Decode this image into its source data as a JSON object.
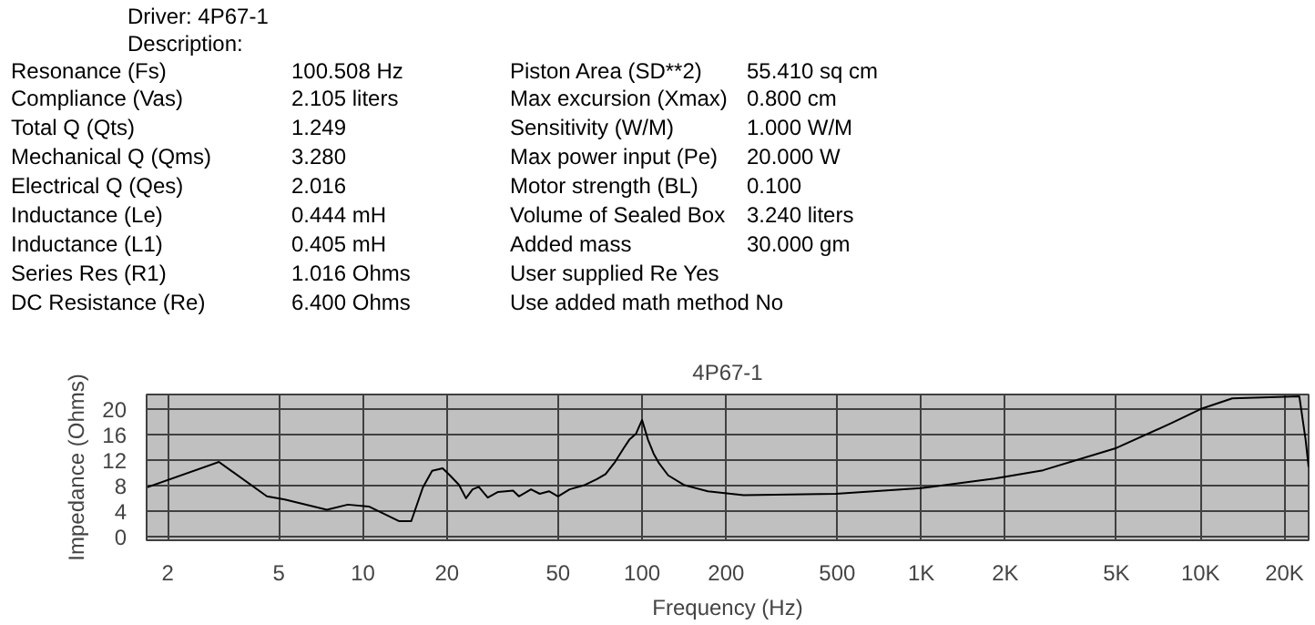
{
  "chart_data": {
    "type": "line",
    "title": "4P67-1",
    "xlabel": "Frequency (Hz)",
    "ylabel": "Impedance (Ohms)",
    "log": "x",
    "annotations": [
      "Driver:  4P67-1",
      "Description:",
      "Resonance (Fs)",
      "100.508 Hz",
      "Piston Area (SD**2)",
      "55.410  sq cm",
      "Compliance (Vas)",
      "2.105  liters",
      "Max excursion (Xmax)",
      "0.800  cm",
      "Total Q (Qts)",
      "1.249",
      "Sensitivity (W/M)",
      "1.000  W/M",
      "Mechanical Q (Qms)",
      "3.280",
      "Max power input (Pe)",
      "20.000  W",
      "Electrical Q (Qes)",
      "2.016",
      "Motor strength (BL)",
      "0.100",
      "Inductance (Le)",
      "0.444  mH",
      "Volume of Sealed Box",
      "3.240  liters",
      "Inductance (L1)",
      "0.405  mH",
      "Added mass",
      "30.000  gm",
      "Series Res (R1)",
      "1.016  Ohms",
      "User supplied Re  Yes",
      "DC Resistance (Re)",
      "6.400  Ohms",
      "Use added math method  No"
    ],
    "x": [
      1.68,
      3.05,
      4.53,
      5.25,
      7.43,
      8.83,
      10.5,
      13.5,
      14.9,
      16.4,
      17.7,
      19.3,
      20.5,
      22.1,
      23.4,
      24.7,
      26,
      28,
      30.5,
      34.5,
      36.2,
      40,
      43,
      46.4,
      50,
      55,
      62.5,
      68.9,
      74,
      80,
      86,
      90,
      95,
      100,
      105,
      110,
      115,
      124,
      141,
      172,
      231,
      494,
      1000,
      1830,
      2730,
      5000,
      7870,
      10000,
      13000,
      22600,
      23800,
      24400
    ],
    "series": [
      {
        "color": "#000000",
        "values": [
          7.7,
          11.7,
          6.3,
          5.8,
          4.2,
          5.0,
          4.7,
          2.4,
          2.4,
          7.7,
          10.3,
          10.7,
          9.6,
          8.1,
          6.0,
          7.4,
          7.8,
          6.1,
          7.0,
          7.2,
          6.3,
          7.4,
          6.7,
          7.1,
          6.3,
          7.4,
          8.1,
          9.0,
          9.8,
          11.7,
          13.9,
          15.2,
          16.1,
          18.3,
          15.2,
          13.0,
          11.5,
          9.6,
          8.1,
          7.1,
          6.5,
          6.7,
          7.6,
          9.1,
          10.4,
          13.9,
          17.8,
          20.0,
          21.7,
          22.0,
          15.2,
          10.9
        ]
      }
    ],
    "xlim": [
      1.68,
      24400
    ],
    "ylim": [
      -0.6,
      22.3
    ],
    "xticks": [
      2,
      5,
      10,
      20,
      50,
      100,
      200,
      500,
      {
        "value": 1000,
        "label": "1K"
      },
      {
        "value": 2000,
        "label": "2K"
      },
      {
        "value": 5000,
        "label": "5K"
      },
      {
        "value": 10000,
        "label": "10K"
      },
      {
        "value": 20000,
        "label": "20K"
      }
    ],
    "yticks": [
      0,
      4,
      8,
      12,
      16,
      20
    ],
    "grid": true
  }
}
